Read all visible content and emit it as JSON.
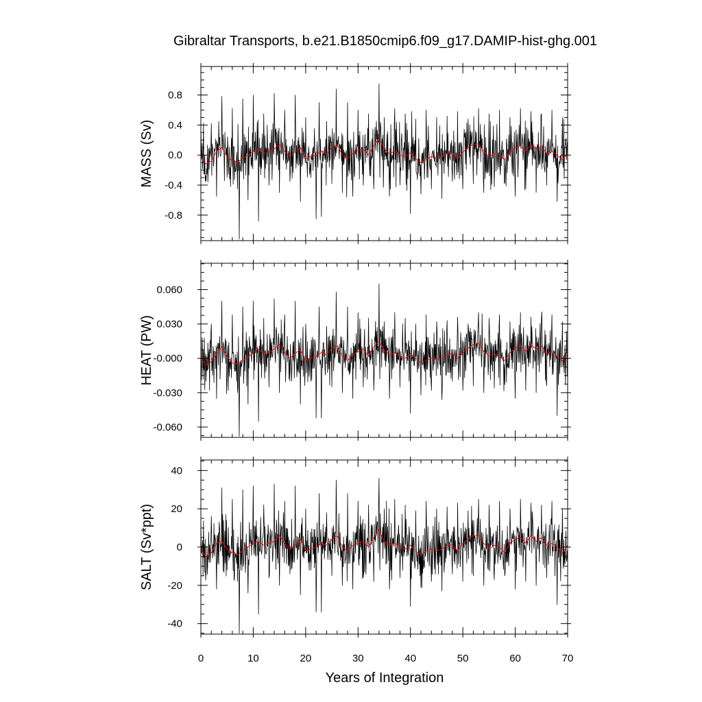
{
  "chart_data": {
    "type": "line",
    "title": "Gibraltar Transports, b.e21.B1850cmip6.f09_g17.DAMIP-hist-ghg.001",
    "xlabel": "Years of Integration",
    "xlim": [
      0,
      70
    ],
    "x_ticks": [
      0,
      10,
      20,
      30,
      40,
      50,
      60,
      70
    ],
    "x_tick_labels": [
      "0",
      "10",
      "20",
      "30",
      "40",
      "50",
      "60",
      "70"
    ],
    "colors": {
      "monthly": "#000000",
      "smoothed": "#ff0000"
    },
    "panels": [
      {
        "id": "mass",
        "ylabel": "MASS (Sv)",
        "ylim": [
          -1.14,
          1.18
        ],
        "y_ticks": [
          0.8,
          0.4,
          0.0,
          -0.4,
          -0.8
        ],
        "y_tick_labels": [
          "0.8",
          "0.4",
          "0.0",
          "-0.4",
          "-0.8"
        ],
        "amplitude": 0.28,
        "series": [
          {
            "style": "monthly",
            "x": [
              0.0,
              1.0,
              2.0,
              3.0,
              4.0,
              5.0,
              6.0,
              7.0,
              7.3,
              8.0,
              9.0,
              10.0,
              11.0,
              12.0,
              13.0,
              14.0,
              15.0,
              16.0,
              17.0,
              18.0,
              19.0,
              20.0,
              21.0,
              22.0,
              22.6,
              23.0,
              24.0,
              25.0,
              25.8,
              27.0,
              28.0,
              29.0,
              30.0,
              31.0,
              32.0,
              33.0,
              34.0,
              34.2,
              35.0,
              36.0,
              37.0,
              38.0,
              39.0,
              40.0,
              41.0,
              42.0,
              43.0,
              44.0,
              45.0,
              46.0,
              47.0,
              48.0,
              49.0,
              50.0,
              51.0,
              52.0,
              53.0,
              54.0,
              55.0,
              56.0,
              57.0,
              58.0,
              59.0,
              60.0,
              61.0,
              62.0,
              63.0,
              64.0,
              65.0,
              66.0,
              67.0,
              68.0,
              69.0,
              70.0
            ],
            "y": [
              0.38,
              -0.35,
              0.42,
              -0.55,
              0.78,
              -0.3,
              0.62,
              -0.45,
              -1.12,
              0.75,
              -0.6,
              0.8,
              -0.88,
              0.55,
              -0.4,
              0.82,
              -0.5,
              0.6,
              -0.35,
              0.8,
              -0.62,
              0.5,
              -0.3,
              -0.85,
              0.7,
              -0.82,
              0.45,
              -0.38,
              0.88,
              -0.5,
              0.7,
              -0.55,
              0.6,
              -0.4,
              0.55,
              -0.45,
              0.95,
              -0.3,
              0.5,
              -0.55,
              0.62,
              -0.4,
              0.55,
              -0.78,
              0.48,
              -0.52,
              0.6,
              -0.45,
              0.5,
              -0.58,
              0.52,
              -0.35,
              0.58,
              -0.45,
              0.48,
              -0.38,
              0.62,
              -0.5,
              0.55,
              -0.42,
              0.6,
              -0.38,
              0.5,
              -0.55,
              0.62,
              -0.45,
              0.58,
              -0.5,
              0.55,
              -0.4,
              0.6,
              -0.62,
              0.5,
              -0.2
            ]
          },
          {
            "style": "smoothed",
            "x": [
              0,
              1,
              2,
              3,
              4,
              5,
              6,
              7,
              8,
              9,
              10,
              11,
              12,
              13,
              14,
              15,
              16,
              17,
              18,
              19,
              20,
              21,
              22,
              23,
              24,
              25,
              26,
              27,
              28,
              29,
              30,
              31,
              32,
              33,
              34,
              35,
              36,
              37,
              38,
              39,
              40,
              41,
              42,
              43,
              44,
              45,
              46,
              47,
              48,
              49,
              50,
              51,
              52,
              53,
              54,
              55,
              56,
              57,
              58,
              59,
              60,
              61,
              62,
              63,
              64,
              65,
              66,
              67,
              68,
              69,
              70
            ],
            "y": [
              -0.02,
              -0.12,
              -0.08,
              0.05,
              0.1,
              -0.02,
              -0.08,
              -0.1,
              -0.04,
              0.0,
              0.05,
              0.08,
              0.02,
              0.05,
              0.08,
              0.14,
              0.05,
              -0.02,
              0.04,
              0.1,
              -0.05,
              -0.02,
              0.0,
              0.05,
              0.02,
              0.1,
              0.14,
              0.0,
              -0.05,
              0.02,
              0.06,
              0.08,
              0.0,
              0.12,
              0.22,
              0.08,
              0.02,
              0.05,
              0.0,
              -0.02,
              0.03,
              -0.05,
              -0.1,
              -0.06,
              -0.02,
              -0.04,
              -0.02,
              0.02,
              0.03,
              -0.05,
              0.04,
              0.1,
              0.14,
              0.15,
              0.05,
              -0.02,
              0.02,
              0.0,
              -0.06,
              0.04,
              0.1,
              0.12,
              0.05,
              0.14,
              0.08,
              0.12,
              0.02,
              0.05,
              0.0,
              -0.06,
              0.02
            ]
          }
        ]
      },
      {
        "id": "heat",
        "ylabel": "HEAT (PW)",
        "ylim": [
          -0.069,
          0.083
        ],
        "y_ticks": [
          0.06,
          0.03,
          0.0,
          -0.03,
          -0.06
        ],
        "y_tick_labels": [
          "0.060",
          "0.030",
          "-0.000",
          "-0.030",
          "-0.060"
        ],
        "amplitude": 0.017,
        "series": [
          {
            "style": "monthly",
            "x": [
              0.0,
              1.0,
              2.0,
              3.0,
              4.0,
              5.0,
              6.0,
              7.0,
              7.3,
              8.0,
              9.0,
              10.0,
              11.0,
              12.0,
              13.0,
              14.0,
              15.0,
              16.0,
              17.0,
              18.0,
              19.0,
              20.0,
              21.0,
              22.0,
              22.6,
              23.0,
              24.0,
              25.0,
              25.8,
              27.0,
              28.0,
              29.0,
              30.0,
              31.0,
              32.0,
              33.0,
              34.0,
              34.2,
              35.0,
              36.0,
              37.0,
              38.0,
              39.0,
              40.0,
              41.0,
              42.0,
              43.0,
              44.0,
              45.0,
              46.0,
              47.0,
              48.0,
              49.0,
              50.0,
              51.0,
              52.0,
              53.0,
              54.0,
              55.0,
              56.0,
              57.0,
              58.0,
              59.0,
              60.0,
              61.0,
              62.0,
              63.0,
              64.0,
              65.0,
              66.0,
              67.0,
              68.0,
              69.0,
              70.0
            ],
            "y": [
              0.029,
              -0.02,
              0.03,
              -0.035,
              0.05,
              -0.02,
              0.038,
              -0.03,
              -0.068,
              0.045,
              -0.04,
              0.05,
              -0.055,
              0.035,
              -0.025,
              0.052,
              -0.03,
              0.038,
              -0.02,
              0.05,
              -0.04,
              0.03,
              -0.02,
              -0.052,
              0.045,
              -0.052,
              0.028,
              -0.025,
              0.058,
              -0.03,
              0.045,
              -0.035,
              0.04,
              -0.025,
              0.035,
              -0.028,
              0.065,
              -0.018,
              0.032,
              -0.035,
              0.04,
              -0.025,
              0.035,
              -0.048,
              0.03,
              -0.032,
              0.038,
              -0.028,
              0.032,
              -0.036,
              0.033,
              -0.02,
              0.036,
              -0.028,
              0.03,
              -0.024,
              0.04,
              -0.03,
              0.035,
              -0.026,
              0.038,
              -0.023,
              0.032,
              -0.035,
              0.04,
              -0.028,
              0.036,
              -0.03,
              0.035,
              -0.024,
              0.038,
              -0.05,
              0.032,
              -0.012
            ]
          },
          {
            "style": "smoothed",
            "x": [
              0,
              1,
              2,
              3,
              4,
              5,
              6,
              7,
              8,
              9,
              10,
              11,
              12,
              13,
              14,
              15,
              16,
              17,
              18,
              19,
              20,
              21,
              22,
              23,
              24,
              25,
              26,
              27,
              28,
              29,
              30,
              31,
              32,
              33,
              34,
              35,
              36,
              37,
              38,
              39,
              40,
              41,
              42,
              43,
              44,
              45,
              46,
              47,
              48,
              49,
              50,
              51,
              52,
              53,
              54,
              55,
              56,
              57,
              58,
              59,
              60,
              61,
              62,
              63,
              64,
              65,
              66,
              67,
              68,
              69,
              70
            ],
            "y": [
              0.0,
              -0.006,
              -0.003,
              0.004,
              0.01,
              0.002,
              -0.004,
              -0.005,
              -0.002,
              0.001,
              0.005,
              0.008,
              0.004,
              0.005,
              0.008,
              0.012,
              0.005,
              0.0,
              0.004,
              0.008,
              -0.002,
              0.0,
              0.002,
              0.005,
              0.003,
              0.009,
              0.011,
              0.002,
              -0.002,
              0.003,
              0.006,
              0.008,
              0.002,
              0.01,
              0.015,
              0.007,
              0.003,
              0.005,
              0.001,
              0.0,
              0.004,
              0.0,
              -0.004,
              -0.002,
              0.0,
              -0.001,
              0.0,
              0.003,
              0.004,
              0.0,
              0.005,
              0.009,
              0.012,
              0.013,
              0.006,
              0.002,
              0.004,
              0.002,
              -0.002,
              0.005,
              0.009,
              0.011,
              0.006,
              0.012,
              0.008,
              0.011,
              0.004,
              0.006,
              0.002,
              -0.002,
              0.004
            ]
          }
        ]
      },
      {
        "id": "salt",
        "ylabel": "SALT (Sv*ppt)",
        "ylim": [
          -45.5,
          45.5
        ],
        "y_ticks": [
          40,
          20,
          0,
          -20,
          -40
        ],
        "y_tick_labels": [
          "40",
          "20",
          "0",
          "-20",
          "-40"
        ],
        "amplitude": 10.5,
        "series": [
          {
            "style": "monthly",
            "x": [
              0.0,
              1.0,
              2.0,
              3.0,
              4.0,
              5.0,
              6.0,
              7.0,
              7.3,
              8.0,
              9.0,
              10.0,
              11.0,
              12.0,
              13.0,
              14.0,
              15.0,
              16.0,
              17.0,
              18.0,
              19.0,
              20.0,
              21.0,
              22.0,
              22.6,
              23.0,
              24.0,
              25.0,
              25.8,
              27.0,
              28.0,
              29.0,
              30.0,
              31.0,
              32.0,
              33.0,
              34.0,
              34.2,
              35.0,
              36.0,
              37.0,
              38.0,
              39.0,
              40.0,
              41.0,
              42.0,
              43.0,
              44.0,
              45.0,
              46.0,
              47.0,
              48.0,
              49.0,
              50.0,
              51.0,
              52.0,
              53.0,
              54.0,
              55.0,
              56.0,
              57.0,
              58.0,
              59.0,
              60.0,
              61.0,
              62.0,
              63.0,
              64.0,
              65.0,
              66.0,
              67.0,
              68.0,
              69.0,
              70.0
            ],
            "y": [
              15,
              -14,
              16,
              -22,
              31,
              -12,
              25,
              -18,
              -45,
              30,
              -24,
              32,
              -35,
              22,
              -16,
              33,
              -20,
              24,
              -14,
              32,
              -25,
              20,
              -12,
              -34,
              28,
              -34,
              18,
              -15,
              35,
              -20,
              28,
              -22,
              24,
              -16,
              22,
              -18,
              36,
              -12,
              20,
              -22,
              25,
              -16,
              22,
              -31,
              19,
              -21,
              24,
              -18,
              20,
              -23,
              21,
              -14,
              23,
              -18,
              19,
              -15,
              25,
              -20,
              22,
              -17,
              24,
              -15,
              20,
              -22,
              25,
              -18,
              23,
              -20,
              22,
              -16,
              24,
              -30,
              20,
              -8
            ]
          },
          {
            "style": "smoothed",
            "x": [
              0,
              1,
              2,
              3,
              4,
              5,
              6,
              7,
              8,
              9,
              10,
              11,
              12,
              13,
              14,
              15,
              16,
              17,
              18,
              19,
              20,
              21,
              22,
              23,
              24,
              25,
              26,
              27,
              28,
              29,
              30,
              31,
              32,
              33,
              34,
              35,
              36,
              37,
              38,
              39,
              40,
              41,
              42,
              43,
              44,
              45,
              46,
              47,
              48,
              49,
              50,
              51,
              52,
              53,
              54,
              55,
              56,
              57,
              58,
              59,
              60,
              61,
              62,
              63,
              64,
              65,
              66,
              67,
              68,
              69,
              70
            ],
            "y": [
              -1,
              -5,
              -3,
              2,
              3,
              -1,
              -3,
              -4,
              -2,
              0,
              2,
              3,
              1,
              2,
              3,
              6,
              2,
              -1,
              1,
              4,
              -2,
              -1,
              0,
              2,
              1,
              4,
              6,
              0,
              -2,
              1,
              2,
              3,
              0,
              5,
              9,
              3,
              1,
              2,
              0,
              -1,
              1,
              -2,
              -4,
              -2,
              -1,
              -2,
              -1,
              1,
              1,
              -2,
              2,
              4,
              6,
              6,
              2,
              -1,
              1,
              0,
              -3,
              2,
              4,
              5,
              2,
              6,
              3,
              5,
              1,
              2,
              0,
              -3,
              1
            ]
          }
        ]
      }
    ]
  }
}
